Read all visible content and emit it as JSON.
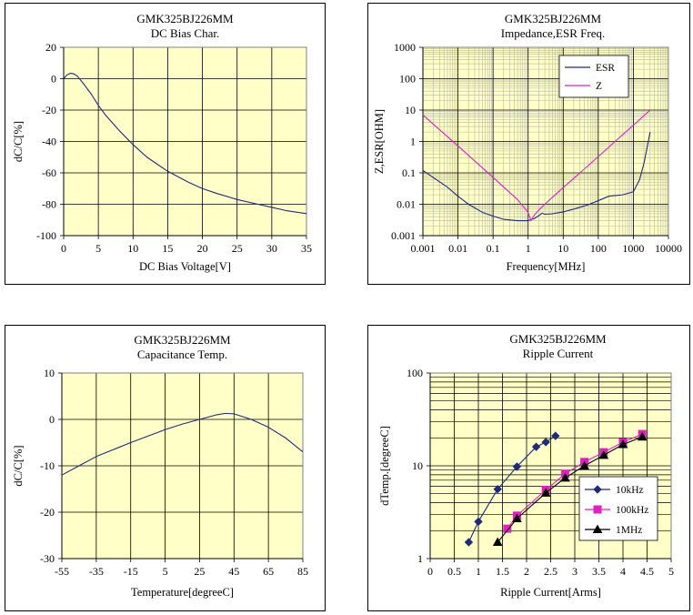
{
  "chart_data": [
    {
      "type": "line",
      "title": "GMK325BJ226MM",
      "subtitle": "DC Bias Char.",
      "xlabel": "DC Bias Voltage[V]",
      "ylabel": "dC/C[%]",
      "xlim": [
        0,
        35
      ],
      "ylim": [
        -100,
        20
      ],
      "xticks": [
        "0",
        "5",
        "10",
        "15",
        "20",
        "25",
        "30",
        "35"
      ],
      "yticks": [
        "20",
        "0",
        "-20",
        "-40",
        "-60",
        "-80",
        "-100"
      ],
      "grid": true,
      "series": [
        {
          "color": "#1f2a7a",
          "x": [
            0,
            0.5,
            1,
            1.5,
            2,
            3,
            4,
            5,
            6,
            8,
            10,
            12,
            15,
            18,
            20,
            22,
            25,
            28,
            30,
            32,
            35
          ],
          "y": [
            0,
            2.5,
            3.5,
            3,
            1.5,
            -4,
            -10,
            -17,
            -23,
            -33,
            -42,
            -50,
            -59,
            -66,
            -70,
            -73,
            -77,
            -80,
            -82,
            -84,
            -86
          ]
        }
      ]
    },
    {
      "type": "line",
      "title": "GMK325BJ226MM",
      "subtitle": "Impedance,ESR Freq.",
      "xlabel": "Frequency[MHz]",
      "ylabel": "Z,ESR[OHM]",
      "xscale": "log",
      "yscale": "log",
      "xlim": [
        0.001,
        10000
      ],
      "ylim": [
        0.001,
        1000
      ],
      "xticks": [
        "0.001",
        "0.01",
        "0.1",
        "1",
        "10",
        "100",
        "1000",
        "10000"
      ],
      "yticks": [
        "1000",
        "100",
        "10",
        "1",
        "0.1",
        "0.01",
        "0.001"
      ],
      "grid": true,
      "legend": "top-center",
      "series": [
        {
          "name": "ESR",
          "color": "#1f2a7a",
          "x": [
            0.001,
            0.002,
            0.005,
            0.01,
            0.02,
            0.05,
            0.1,
            0.2,
            0.5,
            1,
            1.5,
            2,
            2.5,
            3,
            5,
            10,
            20,
            50,
            100,
            200,
            500,
            1000,
            1500,
            2000,
            2500,
            3000
          ],
          "y": [
            0.12,
            0.07,
            0.035,
            0.018,
            0.01,
            0.0055,
            0.0042,
            0.0033,
            0.003,
            0.003,
            0.0035,
            0.0043,
            0.0052,
            0.0048,
            0.005,
            0.0057,
            0.007,
            0.0095,
            0.013,
            0.018,
            0.02,
            0.025,
            0.06,
            0.2,
            0.7,
            2
          ]
        },
        {
          "name": "Z",
          "color": "#e020c0",
          "x": [
            0.001,
            0.01,
            0.1,
            0.5,
            1,
            1.2,
            1.5,
            2,
            3,
            5,
            10,
            30,
            100,
            300,
            1000,
            3000
          ],
          "y": [
            7,
            0.72,
            0.072,
            0.014,
            0.0055,
            0.003,
            0.0045,
            0.0065,
            0.01,
            0.017,
            0.034,
            0.1,
            0.33,
            1,
            3.3,
            10
          ]
        }
      ]
    },
    {
      "type": "line",
      "title": "GMK325BJ226MM",
      "subtitle": "Capacitance Temp.",
      "xlabel": "Temperature[degreeC]",
      "ylabel": "dC/C[%]",
      "xlim": [
        -55,
        85
      ],
      "ylim": [
        -30,
        10
      ],
      "xticks": [
        "-55",
        "-35",
        "-15",
        "5",
        "25",
        "45",
        "65",
        "85"
      ],
      "yticks": [
        "10",
        "0",
        "-10",
        "-20",
        "-30"
      ],
      "grid": true,
      "series": [
        {
          "color": "#1f2a7a",
          "x": [
            -55,
            -45,
            -35,
            -25,
            -15,
            -5,
            5,
            15,
            25,
            35,
            40,
            45,
            55,
            65,
            75,
            85
          ],
          "y": [
            -12,
            -10,
            -8,
            -6.5,
            -5,
            -3.6,
            -2.2,
            -1,
            0,
            1,
            1.3,
            1.2,
            0,
            -1.7,
            -4,
            -7
          ]
        }
      ]
    },
    {
      "type": "line",
      "title": "GMK325BJ226MM",
      "subtitle": "Ripple Current",
      "xlabel": "Ripple Current[Arms]",
      "ylabel": "dTemp.[degreeC]",
      "yscale": "log",
      "xlim": [
        0,
        5
      ],
      "ylim": [
        1,
        100
      ],
      "xticks": [
        "0",
        "0.5",
        "1",
        "1.5",
        "2",
        "2.5",
        "3",
        "3.5",
        "4",
        "4.5",
        "5"
      ],
      "yticks": [
        "100",
        "10",
        "1"
      ],
      "grid": true,
      "legend": "bottom-right",
      "series": [
        {
          "name": "10kHz",
          "color": "#1f2a7a",
          "marker": "diamond",
          "x": [
            0.8,
            1.0,
            1.4,
            1.8,
            2.2,
            2.4,
            2.6
          ],
          "y": [
            1.5,
            2.5,
            5.6,
            9.8,
            16,
            18,
            21
          ]
        },
        {
          "name": "100kHz",
          "color": "#e020c0",
          "marker": "square",
          "x": [
            1.6,
            1.8,
            2.4,
            2.8,
            3.2,
            3.6,
            4.0,
            4.4
          ],
          "y": [
            2.1,
            2.9,
            5.5,
            8.2,
            11,
            14,
            18,
            22
          ]
        },
        {
          "name": "1MHz",
          "color": "#000000",
          "marker": "triangle",
          "x": [
            1.4,
            1.8,
            2.4,
            2.8,
            3.2,
            3.6,
            4.0,
            4.4
          ],
          "y": [
            1.5,
            2.7,
            5.1,
            7.4,
            10,
            13,
            17,
            20.5
          ]
        }
      ]
    }
  ]
}
